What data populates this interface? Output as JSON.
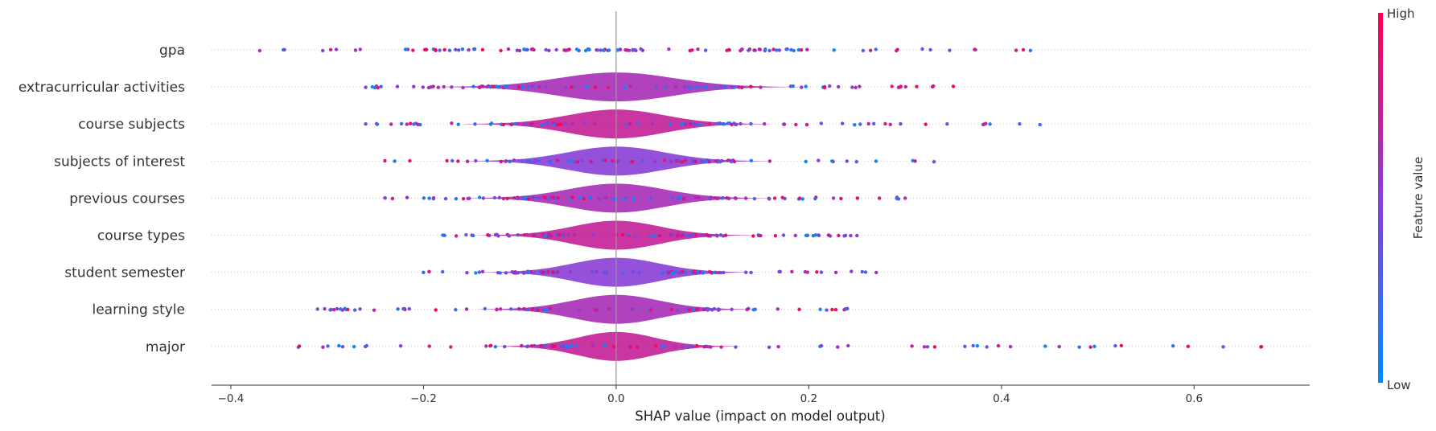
{
  "chart_data": {
    "type": "scatter",
    "subtype": "shap-summary-layered-violin",
    "title": "",
    "xlabel": "SHAP value (impact on model output)",
    "xlim": [
      -0.42,
      0.72
    ],
    "xticks": [
      -0.4,
      -0.2,
      0.0,
      0.2,
      0.4,
      0.6
    ],
    "xtick_labels": [
      "−0.4",
      "−0.2",
      "0.0",
      "0.2",
      "0.4",
      "0.6"
    ],
    "grid": false,
    "reference_line_x": 0.0,
    "colorbar": {
      "label": "Feature value",
      "high_label": "High",
      "low_label": "Low",
      "high_color": "#ff0052",
      "low_color": "#008bfb"
    },
    "features": [
      {
        "name": "gpa",
        "min": -0.37,
        "max": 0.43,
        "spread": 0.08,
        "violin_peak": 0.005
      },
      {
        "name": "extracurricular activities",
        "min": -0.26,
        "max": 0.35,
        "spread": 0.06,
        "violin_peak": 0.13
      },
      {
        "name": "course subjects",
        "min": -0.26,
        "max": 0.44,
        "spread": 0.05,
        "violin_peak": 0.15
      },
      {
        "name": "subjects of interest",
        "min": -0.24,
        "max": 0.33,
        "spread": 0.05,
        "violin_peak": 0.15
      },
      {
        "name": "previous courses",
        "min": -0.24,
        "max": 0.3,
        "spread": 0.05,
        "violin_peak": 0.16
      },
      {
        "name": "course types",
        "min": -0.18,
        "max": 0.25,
        "spread": 0.045,
        "violin_peak": 0.2
      },
      {
        "name": "student semester",
        "min": -0.2,
        "max": 0.27,
        "spread": 0.045,
        "violin_peak": 0.22
      },
      {
        "name": "learning style",
        "min": -0.31,
        "max": 0.24,
        "spread": 0.045,
        "violin_peak": 0.24
      },
      {
        "name": "major",
        "min": -0.33,
        "max": 0.67,
        "spread": 0.04,
        "violin_peak": 0.22
      }
    ]
  }
}
